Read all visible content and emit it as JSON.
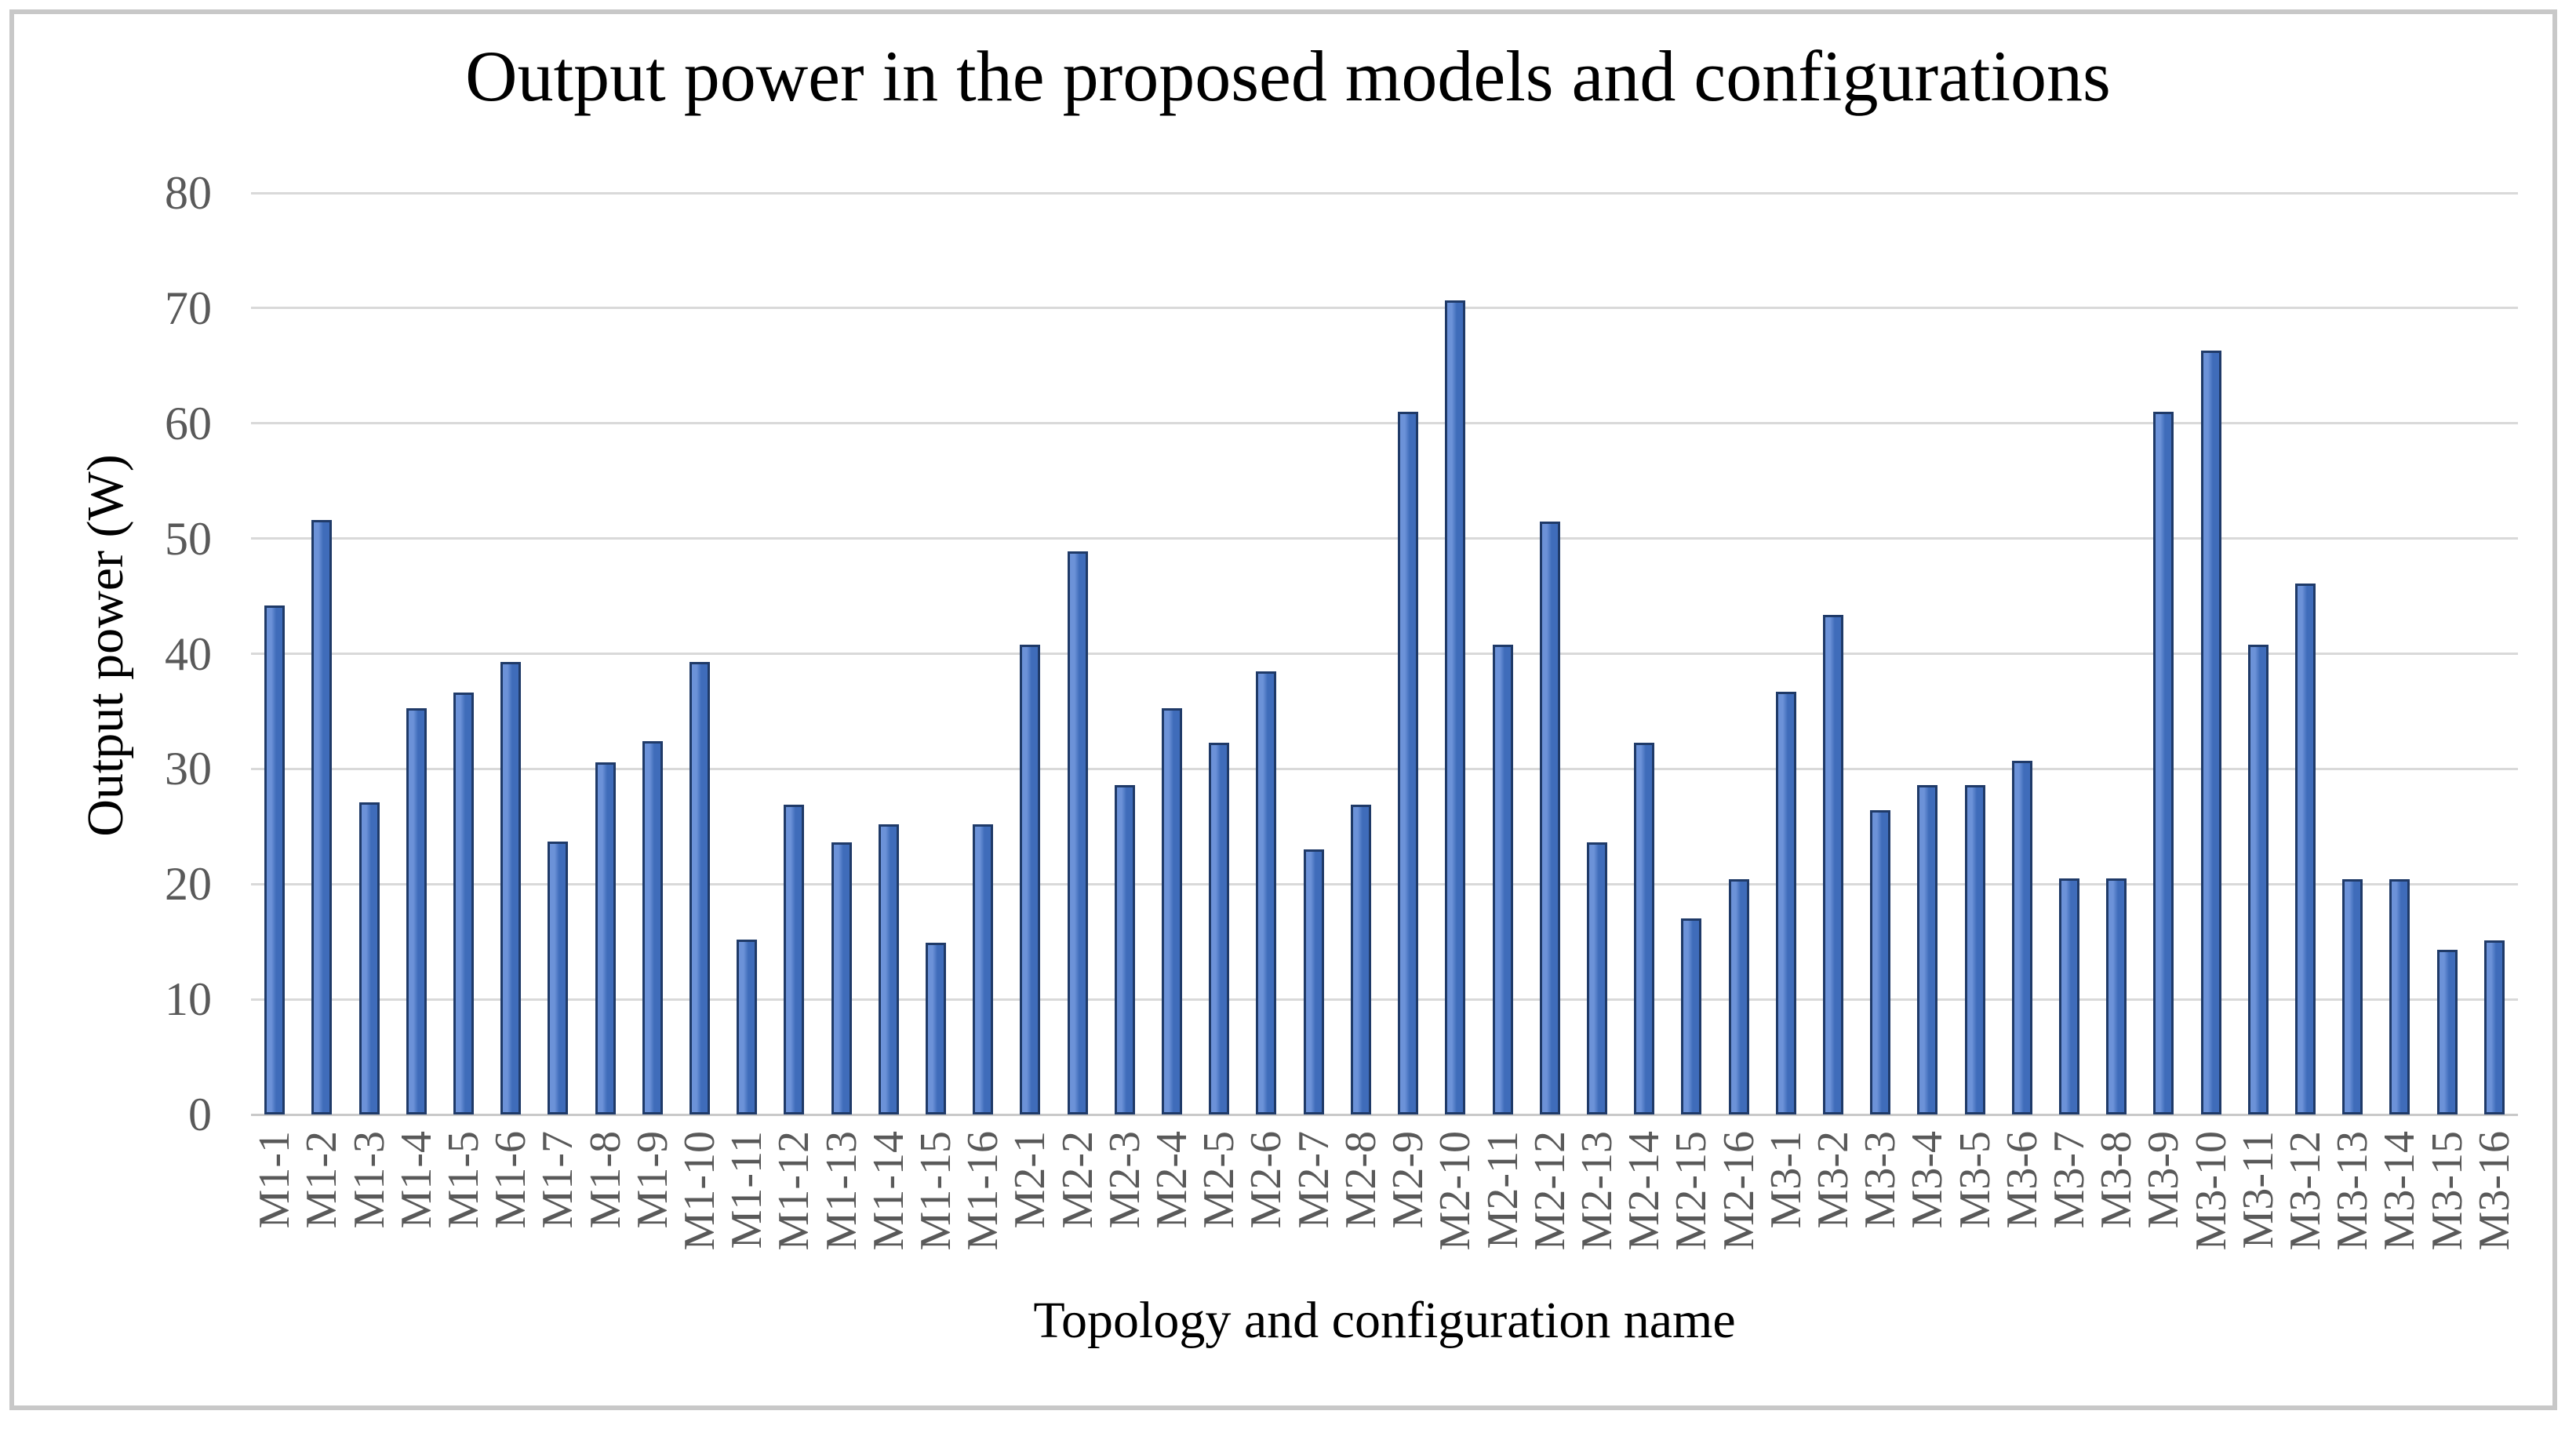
{
  "chart_data": {
    "type": "bar",
    "title": "Output power in the proposed models and configurations",
    "xlabel": "Topology and configuration name",
    "ylabel": "Output power (W)",
    "categories": [
      "M1-1",
      "M1-2",
      "M1-3",
      "M1-4",
      "M1-5",
      "M1-6",
      "M1-7",
      "M1-8",
      "M1-9",
      "M1-10",
      "M1-11",
      "M1-12",
      "M1-13",
      "M1-14",
      "M1-15",
      "M1-16",
      "M2-1",
      "M2-2",
      "M2-3",
      "M2-4",
      "M2-5",
      "M2-6",
      "M2-7",
      "M2-8",
      "M2-9",
      "M2-10",
      "M2-11",
      "M2-12",
      "M2-13",
      "M2-14",
      "M2-15",
      "M2-16",
      "M3-1",
      "M3-2",
      "M3-3",
      "M3-4",
      "M3-5",
      "M3-6",
      "M3-7",
      "M3-8",
      "M3-9",
      "M3-10",
      "M3-11",
      "M3-12",
      "M3-13",
      "M3-14",
      "M3-15",
      "M3-16"
    ],
    "values": [
      44.2,
      51.6,
      27.1,
      35.3,
      36.6,
      39.3,
      23.7,
      30.6,
      32.4,
      39.3,
      15.2,
      26.9,
      23.6,
      25.2,
      14.9,
      25.2,
      40.8,
      48.9,
      28.6,
      35.3,
      32.3,
      38.5,
      23.0,
      26.9,
      61.0,
      70.7,
      40.8,
      51.5,
      23.6,
      32.3,
      17.0,
      20.4,
      36.7,
      43.4,
      26.4,
      28.6,
      28.6,
      30.7,
      20.5,
      20.5,
      61.0,
      66.3,
      40.8,
      46.1,
      20.4,
      20.4,
      14.3,
      15.1
    ],
    "ylim": [
      0,
      80
    ],
    "yticks": [
      0,
      10,
      20,
      30,
      40,
      50,
      60,
      70,
      80
    ],
    "grid": true,
    "legend": "none",
    "bar_fill_color": "#3f6cba",
    "bar_highlight_color": "#6c92d8",
    "bar_border_color": "#1f3a68",
    "gridline_color": "#d9d9d9",
    "axis_line_color": "#c9c9c9",
    "tick_label_color": "#595959",
    "title_color": "#000000",
    "frame_border_color": "#c8c8c8"
  }
}
